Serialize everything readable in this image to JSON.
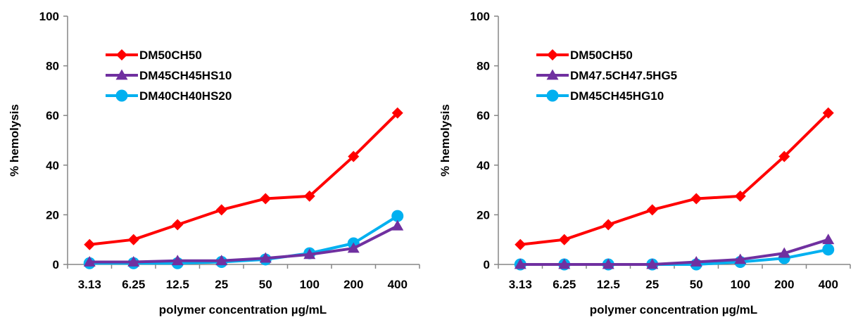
{
  "chart_data": [
    {
      "type": "line",
      "categories": [
        "3.13",
        "6.25",
        "12.5",
        "25",
        "50",
        "100",
        "200",
        "400"
      ],
      "xlabel": "polymer concentration µg/mL",
      "ylabel": "% hemolysis",
      "ylim": [
        0,
        100
      ],
      "yticks": [
        0,
        20,
        40,
        60,
        80,
        100
      ],
      "grid": false,
      "legend": "top-left",
      "series": [
        {
          "name": "DM50CH50",
          "color": "#ff0000",
          "marker": "diamond",
          "values": [
            8,
            10,
            16,
            22,
            26.5,
            27.5,
            43.5,
            61
          ]
        },
        {
          "name": "DM45CH45HS10",
          "color": "#7030a0",
          "marker": "triangle",
          "values": [
            1,
            1,
            1.5,
            1.5,
            2.5,
            4,
            6.5,
            15.5
          ]
        },
        {
          "name": "DM40CH40HS20",
          "color": "#00b0f0",
          "marker": "circle",
          "values": [
            0.5,
            0.5,
            0.5,
            1,
            2,
            4.5,
            8.5,
            19.5
          ]
        }
      ]
    },
    {
      "type": "line",
      "categories": [
        "3.13",
        "6.25",
        "12.5",
        "25",
        "50",
        "100",
        "200",
        "400"
      ],
      "xlabel": "polymer concentration µg/mL",
      "ylabel": "% hemolysis",
      "ylim": [
        0,
        100
      ],
      "yticks": [
        0,
        20,
        40,
        60,
        80,
        100
      ],
      "grid": false,
      "legend": "top-left",
      "series": [
        {
          "name": "DM50CH50",
          "color": "#ff0000",
          "marker": "diamond",
          "values": [
            8,
            10,
            16,
            22,
            26.5,
            27.5,
            43.5,
            61
          ]
        },
        {
          "name": "DM47.5CH47.5HG5",
          "color": "#7030a0",
          "marker": "triangle",
          "values": [
            0,
            0,
            0,
            0,
            1,
            2,
            4.5,
            10
          ]
        },
        {
          "name": "DM45CH45HG10",
          "color": "#00b0f0",
          "marker": "circle",
          "values": [
            0,
            0,
            0,
            0,
            0,
            1,
            2.5,
            6
          ]
        }
      ]
    }
  ]
}
